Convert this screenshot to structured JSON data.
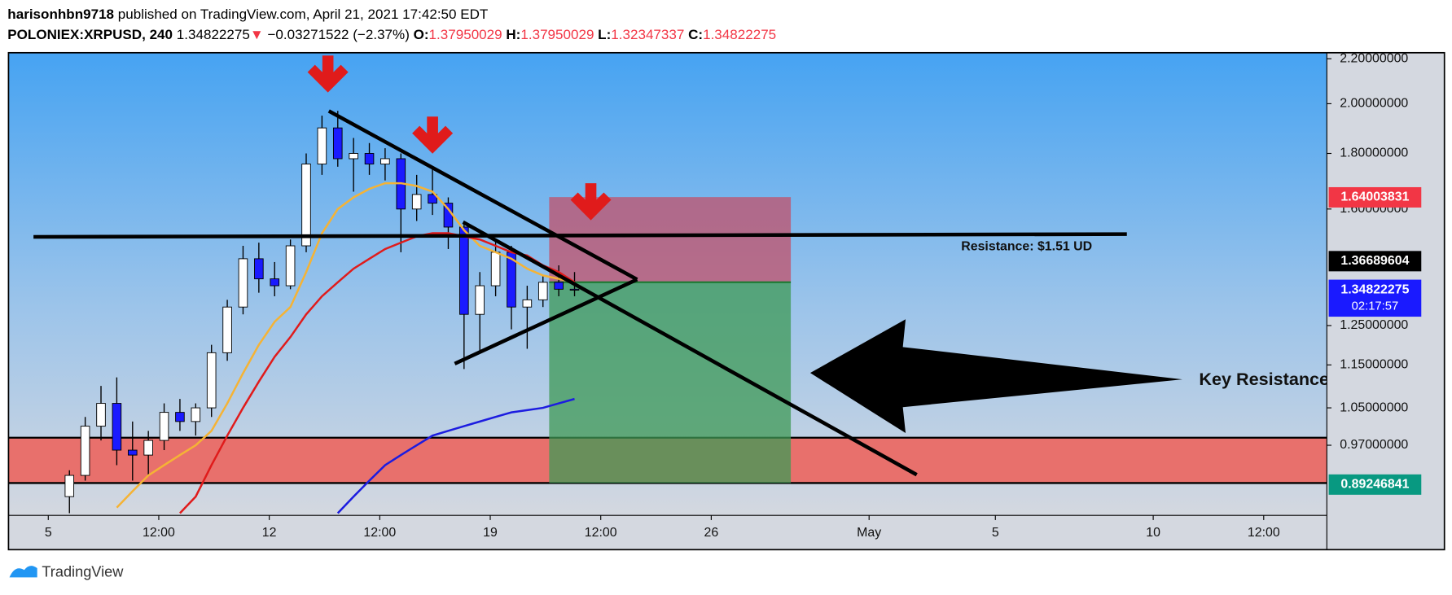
{
  "header": {
    "user": "harisonhbn9718",
    "published": "published on TradingView.com, April 21, 2021 17:42:50 EDT",
    "symbol": "POLONIEX:XRPUSD, 240",
    "last": "1.34822275",
    "change": "−0.03271522 (−2.37%)",
    "o_label": "O:",
    "o": "1.37950029",
    "h_label": "H:",
    "h": "1.37950029",
    "l_label": "L:",
    "l": "1.32347337",
    "c_label": "C:",
    "c": "1.34822275"
  },
  "footer": {
    "brand": "TradingView"
  },
  "chart_data": {
    "type": "candlestick",
    "log_scale": true,
    "x": [
      5.67,
      6.17,
      6.67,
      7.17,
      7.67,
      8.17,
      8.67,
      9.17,
      9.67,
      10.17,
      10.67,
      11.17,
      11.67,
      12.17,
      12.67,
      13.17,
      13.67,
      14.17,
      14.67,
      15.17,
      15.67,
      16.17,
      16.67,
      17.17,
      17.67,
      18.17,
      18.67,
      19.17,
      19.67,
      20.17,
      20.67,
      21.17,
      21.67
    ],
    "open": [
      0.87,
      0.91,
      1.01,
      1.06,
      0.96,
      0.95,
      0.98,
      1.04,
      1.02,
      1.05,
      1.18,
      1.3,
      1.44,
      1.38,
      1.36,
      1.48,
      1.76,
      1.9,
      1.78,
      1.8,
      1.76,
      1.78,
      1.6,
      1.65,
      1.62,
      1.54,
      1.28,
      1.36,
      1.46,
      1.3,
      1.32,
      1.37,
      1.35
    ],
    "high": [
      0.92,
      1.03,
      1.1,
      1.12,
      1.02,
      1.0,
      1.06,
      1.07,
      1.06,
      1.2,
      1.32,
      1.48,
      1.49,
      1.43,
      1.5,
      1.8,
      1.95,
      1.97,
      1.86,
      1.84,
      1.82,
      1.8,
      1.72,
      1.74,
      1.64,
      1.56,
      1.4,
      1.5,
      1.48,
      1.36,
      1.39,
      1.42,
      1.4
    ],
    "low": [
      0.84,
      0.9,
      0.98,
      0.93,
      0.9,
      0.91,
      0.96,
      1.0,
      0.99,
      1.03,
      1.16,
      1.28,
      1.34,
      1.33,
      1.35,
      1.46,
      1.72,
      1.75,
      1.66,
      1.72,
      1.7,
      1.46,
      1.56,
      1.58,
      1.47,
      1.14,
      1.18,
      1.33,
      1.24,
      1.19,
      1.3,
      1.33,
      1.33
    ],
    "close": [
      0.91,
      1.01,
      1.06,
      0.96,
      0.95,
      0.98,
      1.04,
      1.02,
      1.05,
      1.18,
      1.3,
      1.44,
      1.38,
      1.36,
      1.48,
      1.76,
      1.9,
      1.78,
      1.8,
      1.76,
      1.78,
      1.6,
      1.65,
      1.62,
      1.54,
      1.28,
      1.36,
      1.46,
      1.3,
      1.32,
      1.37,
      1.35,
      1.348
    ],
    "up_color": "#ffffff",
    "down_color": "#1a1aff",
    "overlays": [
      {
        "color": "#f5b335",
        "values": [
          null,
          null,
          null,
          0.85,
          0.88,
          0.91,
          0.93,
          0.95,
          0.97,
          1.0,
          1.06,
          1.13,
          1.2,
          1.26,
          1.3,
          1.4,
          1.52,
          1.6,
          1.64,
          1.67,
          1.69,
          1.69,
          1.68,
          1.66,
          1.6,
          1.53,
          1.48,
          1.46,
          1.44,
          1.41,
          1.39,
          1.38,
          1.37
        ]
      },
      {
        "color": "#e01b1b",
        "values": [
          null,
          null,
          null,
          null,
          null,
          null,
          null,
          0.84,
          0.87,
          0.93,
          0.99,
          1.05,
          1.11,
          1.17,
          1.22,
          1.28,
          1.33,
          1.37,
          1.41,
          1.44,
          1.47,
          1.49,
          1.51,
          1.52,
          1.52,
          1.51,
          1.5,
          1.48,
          1.46,
          1.45,
          1.42,
          1.4,
          1.37
        ]
      },
      {
        "color": "#1c1ce0",
        "values": [
          null,
          null,
          null,
          null,
          null,
          null,
          null,
          null,
          null,
          null,
          null,
          null,
          null,
          null,
          null,
          null,
          null,
          0.84,
          0.87,
          0.9,
          0.93,
          0.95,
          0.97,
          0.99,
          1.0,
          1.01,
          1.02,
          1.03,
          1.04,
          1.045,
          1.05,
          1.06,
          1.07
        ]
      }
    ],
    "xlim": [
      3.74,
      45.5
    ],
    "xticks": [
      5,
      {
        "value": 8.5,
        "label": "12:00"
      },
      12,
      {
        "value": 15.5,
        "label": "12:00"
      },
      19,
      {
        "value": 22.5,
        "label": "12:00"
      },
      26,
      {
        "value": 31,
        "label": "May"
      },
      {
        "value": 35,
        "label": "5"
      },
      {
        "value": 40,
        "label": "10"
      },
      {
        "value": 43.5,
        "label": "12:00"
      }
    ],
    "ylim": [
      0.836,
      2.228
    ],
    "yticks": [
      {
        "value": 2.2,
        "label": "2.20000000"
      },
      {
        "value": 2.0,
        "label": "2.00000000"
      },
      {
        "value": 1.8,
        "label": "1.80000000"
      },
      {
        "value": 1.6,
        "label": "1.60000000"
      },
      {
        "value": 1.25,
        "label": "1.25000000"
      },
      {
        "value": 1.15,
        "label": "1.15000000"
      },
      {
        "value": 1.05,
        "label": "1.05000000"
      },
      {
        "value": 0.97,
        "label": "0.97000000"
      }
    ],
    "price_labels": [
      {
        "value": 1.64003831,
        "label": "1.64003831",
        "color": "#f23645"
      },
      {
        "value": 1.36689604,
        "label": "1.36689604",
        "color": "#000000"
      },
      {
        "value": 1.34822275,
        "label": "1.34822275",
        "color": "#1a1aff",
        "countdown": "02:17:57"
      },
      {
        "value": 0.89246841,
        "label": "0.89246841",
        "color": "#089981"
      }
    ],
    "annotations": [
      "Resistance: $1.51 UD",
      "Key Resistance"
    ]
  }
}
